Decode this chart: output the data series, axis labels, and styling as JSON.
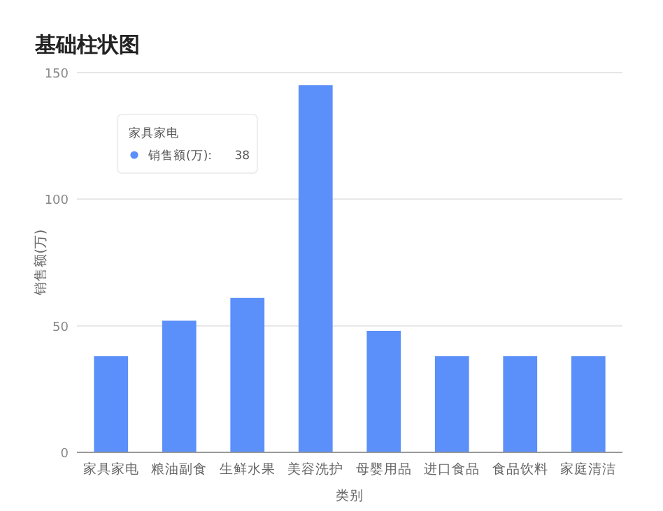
{
  "chart_data": {
    "type": "bar",
    "title": "基础柱状图",
    "xlabel": "类别",
    "ylabel": "销售额(万)",
    "categories": [
      "家具家电",
      "粮油副食",
      "生鲜水果",
      "美容洗护",
      "母婴用品",
      "进口食品",
      "食品饮料",
      "家庭清洁"
    ],
    "series": [
      {
        "color": "#5b8ff9",
        "values": [
          38,
          52,
          61,
          145,
          48,
          38,
          38,
          38
        ]
      }
    ],
    "ylim": [
      0,
      150
    ],
    "yticks": [
      0,
      50,
      100,
      150
    ],
    "grid": "y",
    "annotations": [
      "家具家电",
      "销售额(万):      38"
    ]
  }
}
